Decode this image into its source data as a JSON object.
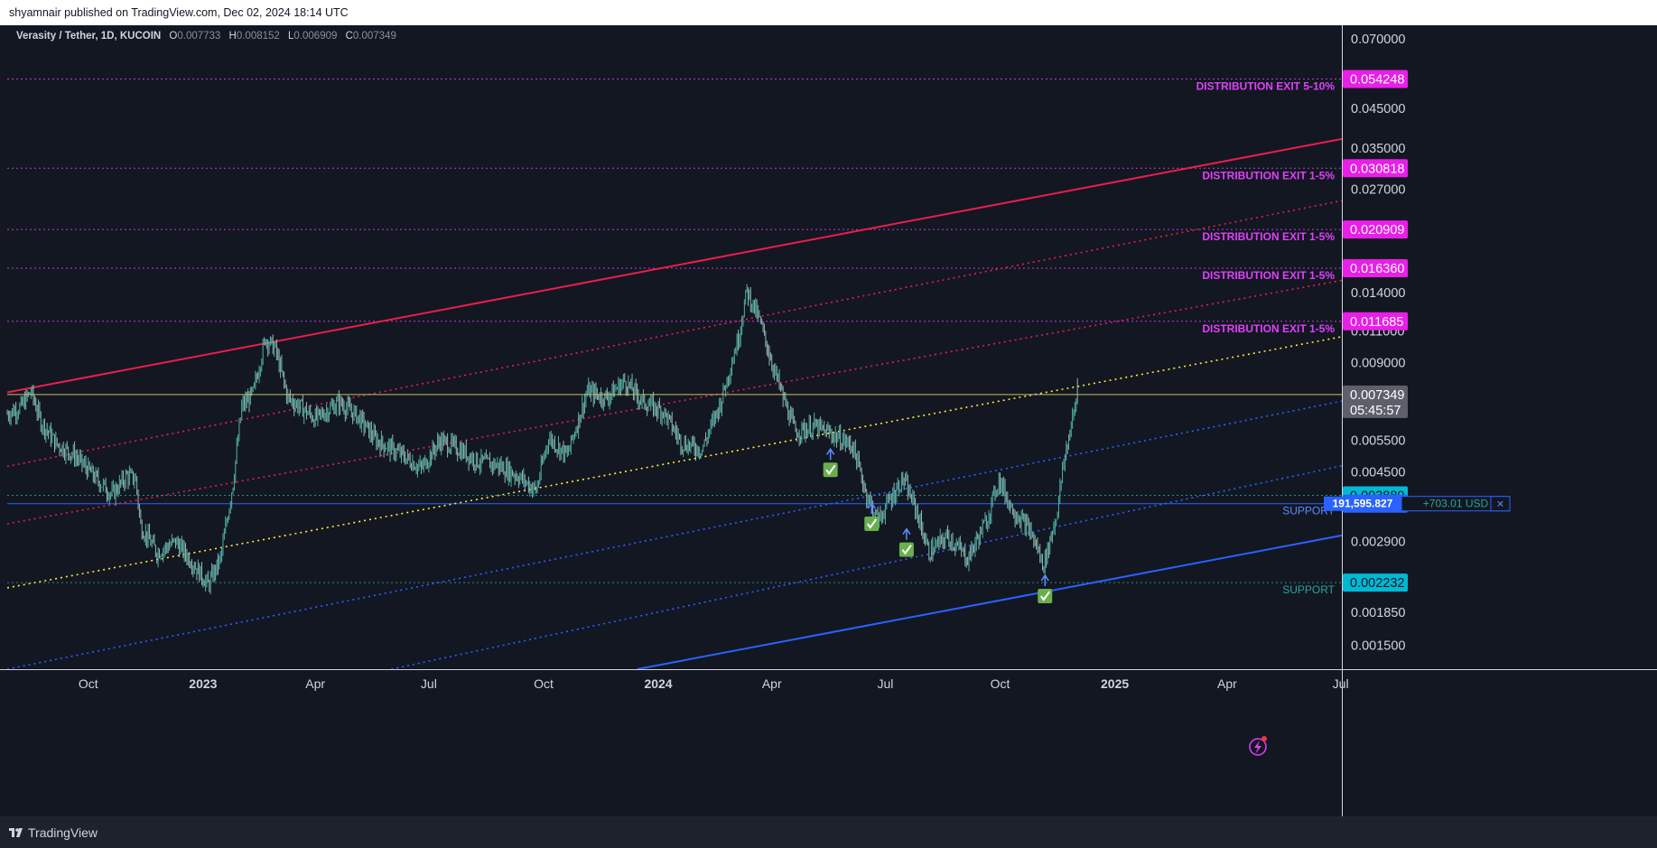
{
  "header": {
    "publisher_line": "shyamnair published on TradingView.com, Dec 02, 2024 18:14 UTC"
  },
  "legend": {
    "symbol": "Verasity / Tether, 1D, KUCOIN",
    "open_label": "O",
    "open": "0.007733",
    "high_label": "H",
    "high": "0.008152",
    "low_label": "L",
    "low": "0.006909",
    "close_label": "C",
    "close": "0.007349"
  },
  "footer": {
    "brand": "TradingView"
  },
  "position_widget": {
    "quantity": "191,595.827",
    "pnl": "+703.01 USD",
    "close_symbol": "×"
  },
  "chart_data": {
    "type": "candlestick",
    "symbol": "Verasity / Tether",
    "timeframe": "1D",
    "exchange": "KUCOIN",
    "ohlc_current": {
      "open": 0.007733,
      "high": 0.008152,
      "low": 0.006909,
      "close": 0.007349
    },
    "y_scale": "log",
    "y_ticks": [
      "0.070000",
      "0.045000",
      "0.035000",
      "0.027000",
      "0.014000",
      "0.011000",
      "0.009000",
      "0.005500",
      "0.004500",
      "0.002900",
      "0.001850",
      "0.001500"
    ],
    "x_ticks": [
      {
        "label": "Oct",
        "date": "2022-10-01",
        "bold": false
      },
      {
        "label": "2023",
        "date": "2023-01-01",
        "bold": true
      },
      {
        "label": "Apr",
        "date": "2023-04-01",
        "bold": false
      },
      {
        "label": "Jul",
        "date": "2023-07-01",
        "bold": false
      },
      {
        "label": "Oct",
        "date": "2023-10-01",
        "bold": false
      },
      {
        "label": "2024",
        "date": "2024-01-01",
        "bold": true
      },
      {
        "label": "Apr",
        "date": "2024-04-01",
        "bold": false
      },
      {
        "label": "Jul",
        "date": "2024-07-01",
        "bold": false
      },
      {
        "label": "Oct",
        "date": "2024-10-01",
        "bold": false
      },
      {
        "label": "2025",
        "date": "2025-01-01",
        "bold": true
      },
      {
        "label": "Apr",
        "date": "2025-04-01",
        "bold": false
      },
      {
        "label": "Jul",
        "date": "2025-07-01",
        "bold": false
      }
    ],
    "x_range": [
      "2022-07-28",
      "2025-07-02"
    ],
    "y_range": [
      0.00129,
      0.0745
    ],
    "price_path": [
      [
        "2022-07-28",
        0.0065
      ],
      [
        "2022-08-08",
        0.0068
      ],
      [
        "2022-08-16",
        0.0075
      ],
      [
        "2022-08-24",
        0.0062
      ],
      [
        "2022-09-05",
        0.0054
      ],
      [
        "2022-09-20",
        0.005
      ],
      [
        "2022-10-05",
        0.0044
      ],
      [
        "2022-10-20",
        0.0039
      ],
      [
        "2022-11-01",
        0.0044
      ],
      [
        "2022-11-08",
        0.0043
      ],
      [
        "2022-11-12",
        0.0032
      ],
      [
        "2022-11-25",
        0.0027
      ],
      [
        "2022-12-10",
        0.0029
      ],
      [
        "2022-12-25",
        0.0025
      ],
      [
        "2023-01-05",
        0.0022
      ],
      [
        "2023-01-15",
        0.0026
      ],
      [
        "2023-01-25",
        0.0042
      ],
      [
        "2023-02-01",
        0.0068
      ],
      [
        "2023-02-10",
        0.0074
      ],
      [
        "2023-02-20",
        0.0105
      ],
      [
        "2023-02-28",
        0.0098
      ],
      [
        "2023-03-10",
        0.0072
      ],
      [
        "2023-03-20",
        0.0068
      ],
      [
        "2023-04-01",
        0.0063
      ],
      [
        "2023-04-20",
        0.007
      ],
      [
        "2023-05-05",
        0.0064
      ],
      [
        "2023-05-20",
        0.0055
      ],
      [
        "2023-06-10",
        0.005
      ],
      [
        "2023-06-25",
        0.0046
      ],
      [
        "2023-07-10",
        0.0055
      ],
      [
        "2023-07-25",
        0.0052
      ],
      [
        "2023-08-10",
        0.0048
      ],
      [
        "2023-08-25",
        0.0047
      ],
      [
        "2023-09-10",
        0.0044
      ],
      [
        "2023-09-25",
        0.004
      ],
      [
        "2023-10-05",
        0.0056
      ],
      [
        "2023-10-20",
        0.005
      ],
      [
        "2023-11-05",
        0.0075
      ],
      [
        "2023-11-20",
        0.0072
      ],
      [
        "2023-12-05",
        0.008
      ],
      [
        "2023-12-20",
        0.007
      ],
      [
        "2024-01-05",
        0.0066
      ],
      [
        "2024-01-20",
        0.0054
      ],
      [
        "2024-02-05",
        0.0052
      ],
      [
        "2024-02-20",
        0.007
      ],
      [
        "2024-03-05",
        0.0105
      ],
      [
        "2024-03-12",
        0.0142
      ],
      [
        "2024-03-22",
        0.0118
      ],
      [
        "2024-04-01",
        0.009
      ],
      [
        "2024-04-10",
        0.0072
      ],
      [
        "2024-04-20",
        0.0058
      ],
      [
        "2024-05-05",
        0.006
      ],
      [
        "2024-05-20",
        0.0057
      ],
      [
        "2024-06-05",
        0.0053
      ],
      [
        "2024-06-15",
        0.004
      ],
      [
        "2024-06-25",
        0.0033
      ],
      [
        "2024-07-05",
        0.0038
      ],
      [
        "2024-07-15",
        0.0043
      ],
      [
        "2024-07-25",
        0.0036
      ],
      [
        "2024-08-05",
        0.0027
      ],
      [
        "2024-08-20",
        0.003
      ],
      [
        "2024-09-05",
        0.0026
      ],
      [
        "2024-09-20",
        0.0033
      ],
      [
        "2024-09-30",
        0.0043
      ],
      [
        "2024-10-10",
        0.0036
      ],
      [
        "2024-10-25",
        0.0031
      ],
      [
        "2024-11-05",
        0.0025
      ],
      [
        "2024-11-15",
        0.0034
      ],
      [
        "2024-11-22",
        0.005
      ],
      [
        "2024-12-02",
        0.0073
      ]
    ],
    "horizontal_levels": [
      {
        "price": 0.054248,
        "tag": "0.054248",
        "label": "DISTRIBUTION EXIT 5-10%",
        "color": "#e040fb",
        "style": "dotted"
      },
      {
        "price": 0.030818,
        "tag": "0.030818",
        "label": "DISTRIBUTION EXIT 1-5%",
        "color": "#e040fb",
        "style": "dotted"
      },
      {
        "price": 0.020909,
        "tag": "0.020909",
        "label": "DISTRIBUTION EXIT 1-5%",
        "color": "#e040fb",
        "style": "dotted"
      },
      {
        "price": 0.01636,
        "tag": "0.016360",
        "label": "DISTRIBUTION EXIT 1-5%",
        "color": "#e040fb",
        "style": "dotted"
      },
      {
        "price": 0.011685,
        "tag": "0.011685",
        "label": "DISTRIBUTION EXIT 1-5%",
        "color": "#e040fb",
        "style": "dotted"
      },
      {
        "price": 0.00388,
        "tag": "0.003880",
        "label": "",
        "color": "#26a69a",
        "style": "dotted"
      },
      {
        "price": 0.003681,
        "tag": "0.003681",
        "label": "SUPPORT",
        "color": "#2962ff",
        "style": "solid"
      },
      {
        "price": 0.002232,
        "tag": "0.002232",
        "label": "SUPPORT",
        "color": "#26a69a",
        "style": "dotted"
      }
    ],
    "last_price": {
      "price": 0.007349,
      "tag": "0.007349",
      "countdown": "05:45:57",
      "color": "#c9c06a"
    },
    "channel_lines": [
      {
        "color": "#e91e4c",
        "style": "solid",
        "points": [
          [
            "2022-07-28",
            0.00745
          ],
          [
            "2025-07-02",
            0.0371
          ]
        ]
      },
      {
        "color": "#e91e4c",
        "style": "dotted",
        "points": [
          [
            "2022-07-28",
            0.00466
          ],
          [
            "2025-07-02",
            0.0251
          ]
        ]
      },
      {
        "color": "#e91e4c",
        "style": "dotted",
        "points": [
          [
            "2022-07-28",
            0.00324
          ],
          [
            "2025-07-02",
            0.01515
          ]
        ]
      },
      {
        "color": "#ffeb3b",
        "style": "dotted",
        "points": [
          [
            "2022-07-28",
            0.00216
          ],
          [
            "2025-07-02",
            0.0106
          ]
        ]
      },
      {
        "color": "#2962ff",
        "style": "dotted",
        "points": [
          [
            "2022-07-28",
            0.00129
          ],
          [
            "2025-07-02",
            0.00705
          ]
        ]
      },
      {
        "color": "#2962ff",
        "style": "dotted",
        "points": [
          [
            "2023-06-01",
            0.00129
          ],
          [
            "2025-07-02",
            0.00468
          ]
        ]
      },
      {
        "color": "#2962ff",
        "style": "solid",
        "points": [
          [
            "2023-12-15",
            0.00129
          ],
          [
            "2025-07-02",
            0.00301
          ]
        ]
      }
    ],
    "buy_markers": [
      {
        "date": "2024-05-18",
        "price": 0.00456
      },
      {
        "date": "2024-06-20",
        "price": 0.00324
      },
      {
        "date": "2024-07-18",
        "price": 0.00275
      },
      {
        "date": "2024-11-06",
        "price": 0.00205
      }
    ]
  }
}
